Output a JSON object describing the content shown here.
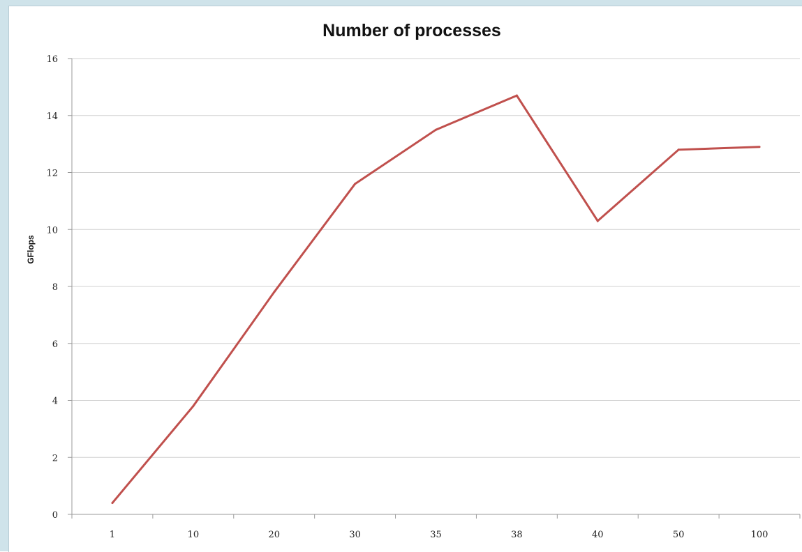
{
  "chart_data": {
    "type": "line",
    "title": "Number of processes",
    "xlabel": "",
    "ylabel": "GFlops",
    "categories": [
      "1",
      "10",
      "20",
      "30",
      "35",
      "38",
      "40",
      "50",
      "100"
    ],
    "series": [
      {
        "values": [
          0.4,
          3.8,
          7.8,
          11.6,
          13.5,
          14.7,
          10.3,
          12.8,
          12.9
        ]
      }
    ],
    "ylim": [
      0,
      16
    ],
    "yticks": [
      0,
      2,
      4,
      6,
      8,
      10,
      12,
      14,
      16
    ],
    "grid": true,
    "legend": "none",
    "line_color": "#c0504d",
    "grid_color": "#d0d0d0"
  }
}
